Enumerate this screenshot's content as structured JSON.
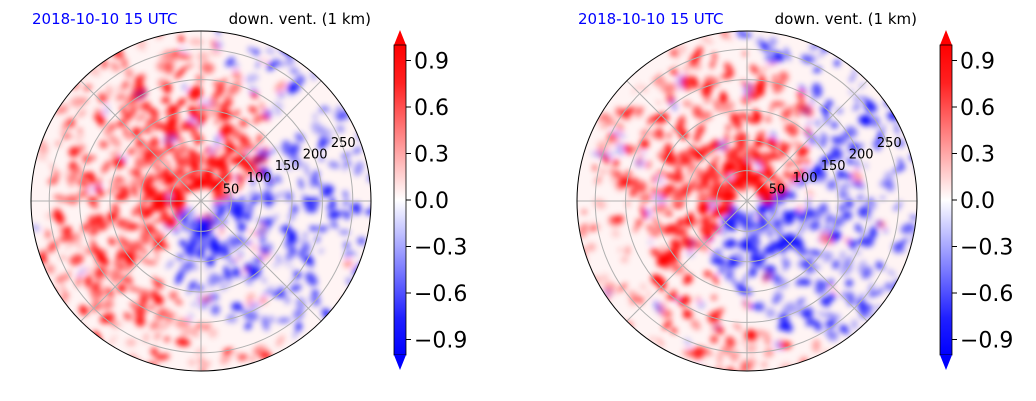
{
  "chart_data": [
    {
      "type": "heatmap",
      "projection": "polar",
      "title_left": "2018-10-10 15 UTC",
      "title_right": "down. vent. (1 km)",
      "radial_ticks": [
        50,
        100,
        150,
        200,
        250
      ],
      "colorbar": {
        "ticks": [
          "0.9",
          "0.6",
          "0.3",
          "0.0",
          "−0.3",
          "−0.6",
          "−0.9"
        ],
        "range": [
          -1.0,
          1.0
        ],
        "extend": "both",
        "colors": {
          "positive": "#ff0000",
          "zero": "#ffffff",
          "negative": "#0000ff"
        }
      }
    },
    {
      "type": "heatmap",
      "projection": "polar",
      "title_left": "2018-10-10 15 UTC",
      "title_right": "down. vent. (1 km)",
      "radial_ticks": [
        50,
        100,
        150,
        200,
        250
      ],
      "colorbar": {
        "ticks": [
          "0.9",
          "0.6",
          "0.3",
          "0.0",
          "−0.3",
          "−0.6",
          "−0.9"
        ],
        "range": [
          -1.0,
          1.0
        ],
        "extend": "both",
        "colors": {
          "positive": "#ff0000",
          "zero": "#ffffff",
          "negative": "#0000ff"
        }
      }
    }
  ]
}
